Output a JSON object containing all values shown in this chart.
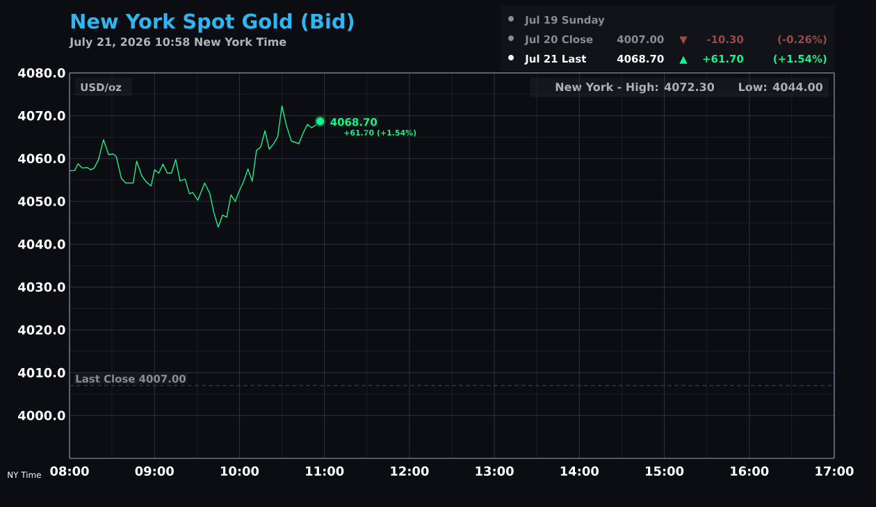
{
  "chart_data": {
    "type": "line",
    "title": "New York Spot Gold (Bid)",
    "subtitle": "July 21, 2026 10:58 New York Time",
    "x": [
      8.0,
      8.06,
      8.1,
      8.15,
      8.21,
      8.25,
      8.29,
      8.34,
      8.4,
      8.46,
      8.51,
      8.55,
      8.61,
      8.66,
      8.75,
      8.79,
      8.85,
      8.9,
      8.96,
      9.0,
      9.05,
      9.1,
      9.15,
      9.2,
      9.25,
      9.3,
      9.36,
      9.41,
      9.45,
      9.51,
      9.54,
      9.59,
      9.65,
      9.7,
      9.75,
      9.8,
      9.85,
      9.9,
      9.95,
      9.99,
      10.05,
      10.1,
      10.15,
      10.2,
      10.25,
      10.3,
      10.35,
      10.4,
      10.45,
      10.5,
      10.55,
      10.61,
      10.7,
      10.75,
      10.8,
      10.85,
      10.91,
      10.95
    ],
    "series": [
      {
        "color": "#17f28a",
        "values": [
          4057.2,
          4057.2,
          4058.8,
          4057.8,
          4057.9,
          4057.4,
          4057.8,
          4059.7,
          4064.4,
          4060.9,
          4061.1,
          4060.5,
          4055.4,
          4054.3,
          4054.3,
          4059.4,
          4056.0,
          4054.6,
          4053.6,
          4057.4,
          4056.6,
          4058.7,
          4056.6,
          4056.6,
          4059.8,
          4054.8,
          4055.2,
          4051.8,
          4052.1,
          4050.3,
          4051.8,
          4054.3,
          4051.9,
          4047.3,
          4044.0,
          4046.8,
          4046.3,
          4051.5,
          4050.0,
          4052.1,
          4054.7,
          4057.6,
          4054.7,
          4061.9,
          4062.7,
          4066.5,
          4062.2,
          4063.4,
          4065.1,
          4072.3,
          4067.9,
          4064.1,
          4063.5,
          4066.0,
          4068.0,
          4067.2,
          4068.0,
          4068.7
        ]
      }
    ],
    "xlim": [
      8,
      17
    ],
    "xticks": [
      {
        "value": 8,
        "label": "08:00"
      },
      {
        "value": 9,
        "label": "09:00"
      },
      {
        "value": 10,
        "label": "10:00"
      },
      {
        "value": 11,
        "label": "11:00"
      },
      {
        "value": 12,
        "label": "12:00"
      },
      {
        "value": 13,
        "label": "13:00"
      },
      {
        "value": 14,
        "label": "14:00"
      },
      {
        "value": 15,
        "label": "15:00"
      },
      {
        "value": 16,
        "label": "16:00"
      },
      {
        "value": 17,
        "label": "17:00"
      }
    ],
    "ylim": [
      3990,
      4080
    ],
    "yticks": [
      {
        "value": 4000,
        "label": "4000.0"
      },
      {
        "value": 4010,
        "label": "4010.0"
      },
      {
        "value": 4020,
        "label": "4020.0"
      },
      {
        "value": 4030,
        "label": "4030.0"
      },
      {
        "value": 4040,
        "label": "4040.0"
      },
      {
        "value": 4050,
        "label": "4050.0"
      },
      {
        "value": 4060,
        "label": "4060.0"
      },
      {
        "value": 4070,
        "label": "4070.0"
      },
      {
        "value": 4080,
        "label": "4080.0"
      }
    ],
    "grid": true,
    "marker": "none",
    "line_style": "solid",
    "ref_lines": [
      {
        "axis": "y",
        "value": 4007,
        "label": "Last Close 4007.00",
        "color": "#5a5d66",
        "line_style": "dashed"
      }
    ],
    "annotations": [
      "USD/oz",
      "New York - High: 4072.30",
      "Low: 4044.00",
      "Jul 19 Sunday",
      "Jul 20 Close",
      "4007.00",
      "▼",
      "-10.30",
      "(-0.26%)",
      "Jul 21 Last",
      "4068.70",
      "▲",
      "+61.70",
      "(+1.54%)",
      {
        "text": "4068.70",
        "x": 10.95,
        "y": 4068.7
      },
      "+61.70 (+1.54%)",
      "NY Time"
    ]
  }
}
